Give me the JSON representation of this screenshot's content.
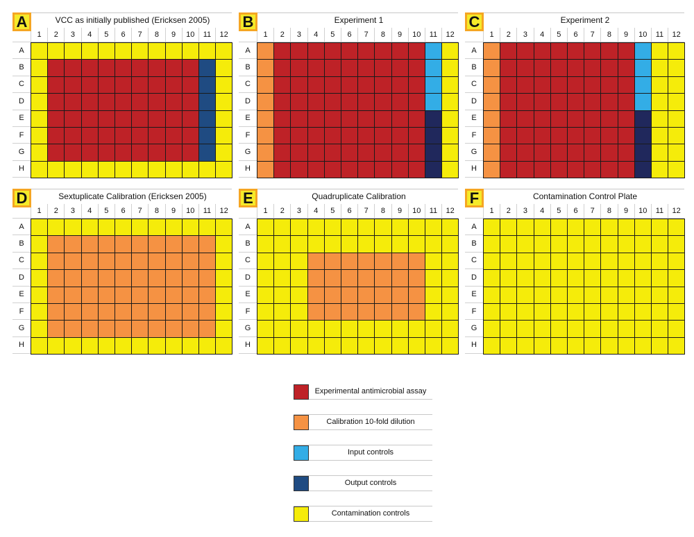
{
  "colors": {
    "R": "#be2227",
    "O": "#f59243",
    "C": "#33ade6",
    "N": "#1f4b82",
    "K": "#20285c",
    "Y": "#f5ec0a"
  },
  "rows": [
    "A",
    "B",
    "C",
    "D",
    "E",
    "F",
    "G",
    "H"
  ],
  "cols": [
    "1",
    "2",
    "3",
    "4",
    "5",
    "6",
    "7",
    "8",
    "9",
    "10",
    "11",
    "12"
  ],
  "panels": [
    {
      "letter": "A",
      "title": "VCC as initially published (Ericksen 2005)",
      "layout": [
        "YYYYYYYYYYYY",
        "YRRRRRRRRRNY",
        "YRRRRRRRRRNY",
        "YRRRRRRRRRNY",
        "YRRRRRRRRRNY",
        "YRRRRRRRRRNY",
        "YRRRRRRRRRNY",
        "YYYYYYYYYYYY"
      ]
    },
    {
      "letter": "B",
      "title": "Experiment 1",
      "layout": [
        "ORRRRRRRRRCY",
        "ORRRRRRRRRCY",
        "ORRRRRRRRRCY",
        "ORRRRRRRRRCY",
        "ORRRRRRRRRKY",
        "ORRRRRRRRRKY",
        "ORRRRRRRRRKY",
        "ORRRRRRRRRKY"
      ]
    },
    {
      "letter": "C",
      "title": "Experiment 2",
      "layout": [
        "ORRRRRRRRCYY",
        "ORRRRRRRRCYY",
        "ORRRRRRRRCYY",
        "ORRRRRRRRCYY",
        "ORRRRRRRRKYY",
        "ORRRRRRRRKYY",
        "ORRRRRRRRKYY",
        "ORRRRRRRRKYY"
      ]
    },
    {
      "letter": "D",
      "title": "Sextuplicate Calibration (Ericksen 2005)",
      "layout": [
        "YYYYYYYYYYYY",
        "YOOOOOOOOOOY",
        "YOOOOOOOOOOY",
        "YOOOOOOOOOOY",
        "YOOOOOOOOOOY",
        "YOOOOOOOOOOY",
        "YOOOOOOOOOOY",
        "YYYYYYYYYYYY"
      ]
    },
    {
      "letter": "E",
      "title": "Quadruplicate Calibration",
      "layout": [
        "YYYYYYYYYYYY",
        "YYYYYYYYYYYY",
        "YYYOOOOOOOYY",
        "YYYOOOOOOOYY",
        "YYYOOOOOOOYY",
        "YYYOOOOOOOYY",
        "YYYYYYYYYYYY",
        "YYYYYYYYYYYY"
      ]
    },
    {
      "letter": "F",
      "title": "Contamination Control Plate",
      "layout": [
        "YYYYYYYYYYYY",
        "YYYYYYYYYYYY",
        "YYYYYYYYYYYY",
        "YYYYYYYYYYYY",
        "YYYYYYYYYYYY",
        "YYYYYYYYYYYY",
        "YYYYYYYYYYYY",
        "YYYYYYYYYYYY"
      ]
    }
  ],
  "legend": [
    {
      "label": "Experimental antimicrobial assay",
      "color": "#be2227"
    },
    {
      "label": "Calibration 10-fold dilution",
      "color": "#f59243"
    },
    {
      "label": "Input controls",
      "color": "#33ade6"
    },
    {
      "label": "Output controls",
      "color": "#1f4b82"
    },
    {
      "label": "Contamination controls",
      "color": "#f5ec0a"
    }
  ]
}
